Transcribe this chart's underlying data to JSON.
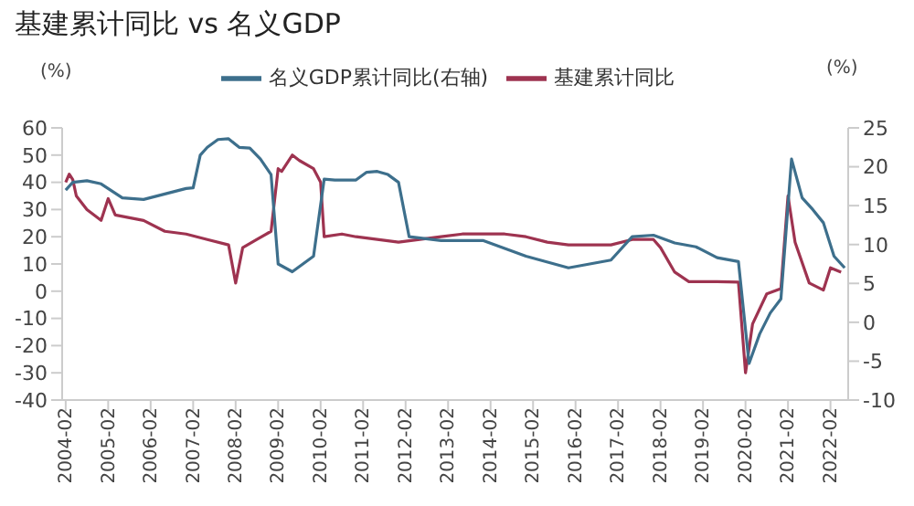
{
  "chart_data": {
    "type": "line",
    "title": "基建累计同比 vs 名义GDP",
    "ylabel": "(%)",
    "y2label": "(%)",
    "legend": "top",
    "xlim": [
      "2004-01",
      "2022-07"
    ],
    "xticks": [
      "2004-02",
      "2005-02",
      "2006-02",
      "2007-02",
      "2008-02",
      "2009-02",
      "2010-02",
      "2011-02",
      "2012-02",
      "2013-02",
      "2014-02",
      "2015-02",
      "2016-02",
      "2017-02",
      "2018-02",
      "2019-02",
      "2020-02",
      "2021-02",
      "2022-02"
    ],
    "ylim": [
      -40,
      60
    ],
    "yticks": [
      -40,
      -30,
      -20,
      -10,
      0,
      10,
      20,
      30,
      40,
      50,
      60
    ],
    "y2lim": [
      -10,
      25
    ],
    "y2ticks": [
      -10,
      -5,
      0,
      5,
      10,
      15,
      20,
      25
    ],
    "series": [
      {
        "name": "基建累计同比",
        "color": "#9e3350",
        "x": [
          "2004-02",
          "2004-03",
          "2004-04",
          "2004-05",
          "2004-08",
          "2004-12",
          "2005-02",
          "2005-04",
          "2005-08",
          "2005-12",
          "2006-06",
          "2006-12",
          "2007-06",
          "2007-12",
          "2008-02",
          "2008-04",
          "2008-08",
          "2008-12",
          "2009-02",
          "2009-03",
          "2009-06",
          "2009-08",
          "2009-12",
          "2010-02",
          "2010-03",
          "2010-08",
          "2010-12",
          "2011-06",
          "2011-12",
          "2012-06",
          "2012-12",
          "2013-06",
          "2013-12",
          "2014-06",
          "2014-12",
          "2015-06",
          "2015-12",
          "2016-06",
          "2016-12",
          "2017-06",
          "2017-12",
          "2018-02",
          "2018-06",
          "2018-10",
          "2019-06",
          "2019-12",
          "2020-02",
          "2020-04",
          "2020-08",
          "2020-12",
          "2021-02",
          "2021-04",
          "2021-08",
          "2021-12",
          "2022-02",
          "2022-05"
        ],
        "values": [
          40,
          43,
          41,
          35,
          30,
          26,
          34,
          28,
          27,
          26,
          22,
          21,
          19,
          17,
          3,
          16,
          19,
          22,
          45,
          44,
          50,
          48,
          45,
          40,
          20,
          21,
          20,
          19,
          18,
          19,
          20,
          21,
          21,
          21,
          20,
          18,
          17,
          17,
          17,
          19,
          19,
          16,
          7,
          3.5,
          3.5,
          3.3,
          -30,
          -12,
          -1,
          0.9,
          35,
          18,
          3,
          0.4,
          8.6,
          7
        ]
      },
      {
        "name": "名义GDP累计同比(右轴)",
        "color": "#3d6f8c",
        "axis": "y2",
        "x": [
          "2004-02",
          "2004-04",
          "2004-08",
          "2004-12",
          "2005-06",
          "2005-12",
          "2006-06",
          "2006-12",
          "2007-02",
          "2007-04",
          "2007-06",
          "2007-09",
          "2007-12",
          "2008-03",
          "2008-06",
          "2008-09",
          "2008-12",
          "2009-02",
          "2009-06",
          "2009-09",
          "2009-12",
          "2010-03",
          "2010-06",
          "2010-12",
          "2011-03",
          "2011-06",
          "2011-09",
          "2011-12",
          "2012-03",
          "2012-12",
          "2013-12",
          "2014-12",
          "2015-12",
          "2016-12",
          "2017-06",
          "2017-12",
          "2018-06",
          "2018-12",
          "2019-06",
          "2019-12",
          "2020-03",
          "2020-06",
          "2020-09",
          "2020-12",
          "2021-03",
          "2021-06",
          "2021-09",
          "2021-12",
          "2022-03",
          "2022-06"
        ],
        "values": [
          17,
          18,
          18.2,
          17.8,
          16,
          15.8,
          16.5,
          17.2,
          17.3,
          21.5,
          22.5,
          23.5,
          23.6,
          22.5,
          22.4,
          21,
          19,
          7.5,
          6.5,
          7.5,
          8.5,
          18.4,
          18.3,
          18.3,
          19.3,
          19.4,
          19,
          18,
          11,
          10.5,
          10.5,
          8.5,
          7,
          8,
          11,
          11.2,
          10.2,
          9.7,
          8.3,
          7.8,
          -5.3,
          -1.5,
          1.2,
          3,
          21,
          16,
          14.5,
          12.8,
          8.5,
          7
        ]
      }
    ]
  }
}
